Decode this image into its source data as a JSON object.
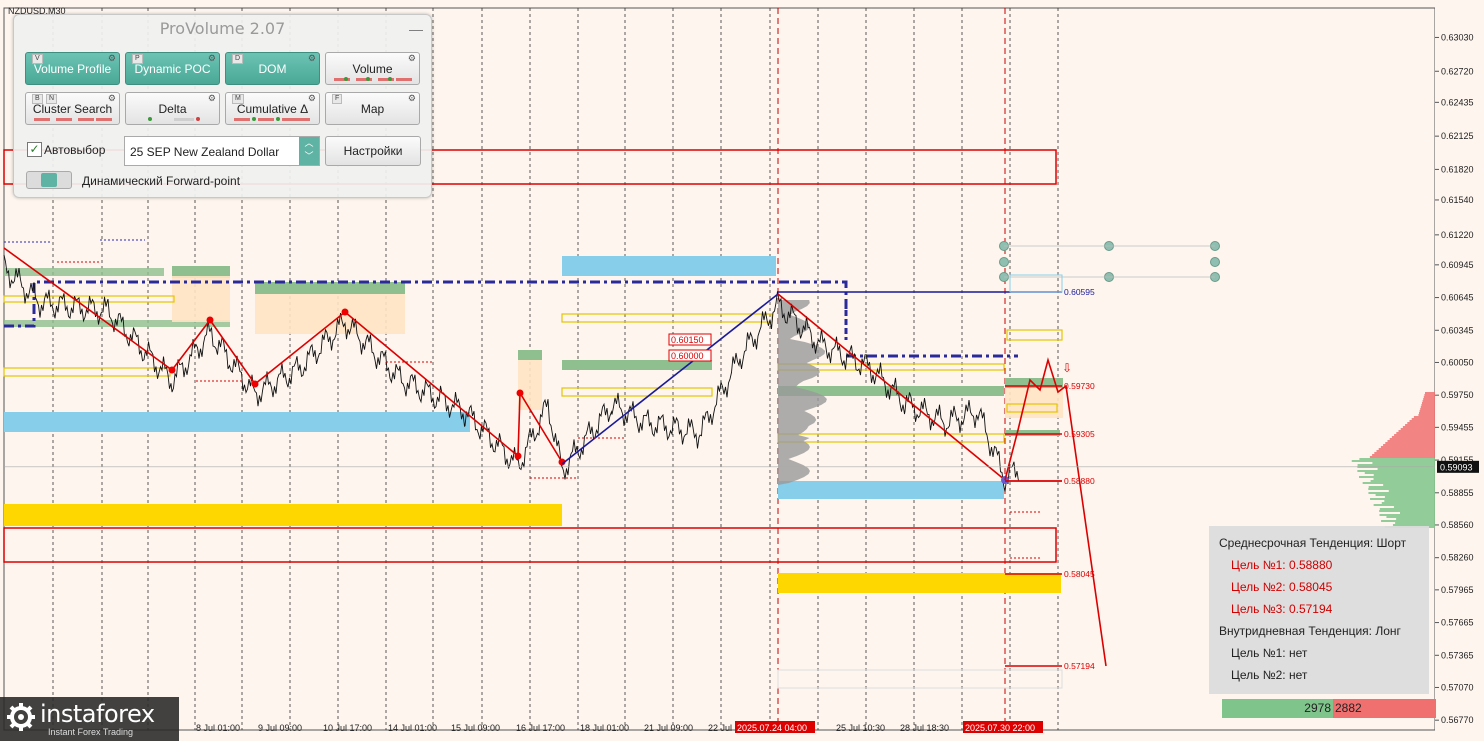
{
  "symbol": "NZDUSD,M30",
  "panel": {
    "title": "ProVolume 2.07",
    "minimize": "—",
    "buttons": [
      {
        "label": "Volume Profile",
        "key": "V",
        "active": true
      },
      {
        "label": "Dynamic POC",
        "key": "P",
        "active": true
      },
      {
        "label": "DOM",
        "key": "D",
        "active": true
      },
      {
        "label": "Volume",
        "key": "",
        "active": false
      },
      {
        "label": "Cluster Search",
        "key": "B",
        "key2": "N",
        "active": false
      },
      {
        "label": "Delta",
        "key": "",
        "active": false
      },
      {
        "label": "Cumulative Δ",
        "key": "M",
        "active": false
      },
      {
        "label": "Map",
        "key": "F",
        "active": false
      }
    ],
    "autoselect_label": "Автовыбор",
    "autoselect_checked": true,
    "contract_value": "25 SEP New Zealand Dollar",
    "settings_label": "Настройки",
    "forward_point_label": "Динамический Forward-point"
  },
  "chart_data": {
    "type": "line",
    "symbol": "NZDUSD",
    "timeframe": "M30",
    "ylim": [
      0.5668,
      0.633
    ],
    "price_ticks": [
      "0.63030",
      "0.62720",
      "0.62435",
      "0.62125",
      "0.61820",
      "0.61540",
      "0.61220",
      "0.60945",
      "0.60645",
      "0.60345",
      "0.60050",
      "0.59750",
      "0.59455",
      "0.59155",
      "0.58855",
      "0.58560",
      "0.58260",
      "0.57965",
      "0.57665",
      "0.57365",
      "0.57070",
      "0.56770"
    ],
    "current_price": "0.59093",
    "time_labels": [
      "8 Jul 01:00",
      "9 Jul 09:00",
      "10 Jul 17:00",
      "14 Jul 01:00",
      "15 Jul 09:00",
      "16 Jul 17:00",
      "18 Jul 01:00",
      "21 Jul 09:00",
      "22 Jul",
      "2025.07.24 04:00",
      "25 Jul 10:30",
      "28 Jul 18:30",
      "2025.07.30 22:00"
    ],
    "highlighted_times": [
      "2025.07.24 04:00",
      "2025.07.30 22:00"
    ],
    "level_labels": [
      {
        "text": "0.60595",
        "price": 0.60595
      },
      {
        "text": "0.59730",
        "price": 0.5973
      },
      {
        "text": "0.59305",
        "price": 0.59305
      },
      {
        "text": "0.58880",
        "price": 0.5888
      },
      {
        "text": "0.58045",
        "price": 0.58045
      },
      {
        "text": "0.57194",
        "price": 0.57194
      }
    ],
    "annotations": [
      {
        "text": "0.60150",
        "price": 0.602
      },
      {
        "text": "0.60000",
        "price": 0.6
      }
    ],
    "zigzag_red": [
      [
        0.6092,
        0
      ],
      [
        0.5988,
        1
      ],
      [
        0.6032,
        2
      ],
      [
        0.5976,
        3
      ],
      [
        0.6042,
        4
      ],
      [
        0.591,
        5
      ],
      [
        0.5966,
        6
      ],
      [
        0.5906,
        7
      ]
    ],
    "zigzag_blue": [
      [
        0.5902,
        0
      ],
      [
        0.6058,
        1
      ]
    ],
    "forecast_targets": [
      0.5888,
      0.58045,
      0.57194
    ]
  },
  "trend": {
    "medium_label": "Среднесрочная Тенденция: Шорт",
    "targets_medium": [
      "Цель №1: 0.58880",
      "Цель №2: 0.58045",
      "Цель №3: 0.57194"
    ],
    "intraday_label": "Внутридневная Тенденция: Лонг",
    "targets_intraday": [
      "Цель №1: нет",
      "Цель №2: нет"
    ]
  },
  "volume_bar": {
    "buy": "2978",
    "sell": "2882"
  },
  "logo": {
    "name": "instaforex",
    "tagline": "Instant Forex Trading"
  },
  "colors": {
    "up_zone": "#8fbf8f",
    "down_zone": "#87ceeb",
    "gold_zone": "#ffd700",
    "red_line": "#dd0000",
    "blue_line": "#1a1a9a",
    "accent": "#5fb3a5"
  }
}
